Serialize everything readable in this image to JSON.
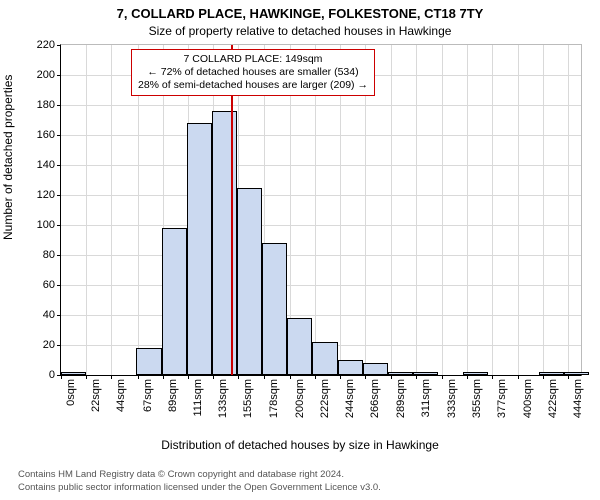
{
  "title": "7, COLLARD PLACE, HAWKINGE, FOLKESTONE, CT18 7TY",
  "subtitle": "Size of property relative to detached houses in Hawkinge",
  "ylabel": "Number of detached properties",
  "xlabel": "Distribution of detached houses by size in Hawkinge",
  "chart": {
    "type": "histogram",
    "bar_fill": "#cbd9f0",
    "bar_stroke": "#000000",
    "grid_color": "#d9d9d9",
    "background": "#ffffff",
    "refline_color": "#cc0000",
    "refline_x": 149,
    "ylim": [
      0,
      220
    ],
    "ytick_step": 20,
    "xtick_labels": [
      "0sqm",
      "22sqm",
      "44sqm",
      "67sqm",
      "89sqm",
      "111sqm",
      "133sqm",
      "155sqm",
      "178sqm",
      "200sqm",
      "222sqm",
      "244sqm",
      "266sqm",
      "289sqm",
      "311sqm",
      "333sqm",
      "355sqm",
      "377sqm",
      "400sqm",
      "422sqm",
      "444sqm"
    ],
    "xtick_values": [
      0,
      22,
      44,
      67,
      89,
      111,
      133,
      155,
      178,
      200,
      222,
      244,
      266,
      289,
      311,
      333,
      355,
      377,
      400,
      422,
      444
    ],
    "xmax": 455,
    "bin_width": 22,
    "values": [
      2,
      0,
      0,
      18,
      98,
      168,
      176,
      125,
      88,
      38,
      22,
      10,
      8,
      2,
      2,
      0,
      2,
      0,
      0,
      2,
      2
    ],
    "title_fontsize": 13,
    "subtitle_fontsize": 12,
    "label_fontsize": 12,
    "tick_fontsize": 11
  },
  "annotation": {
    "line1": "7 COLLARD PLACE: 149sqm",
    "line2": "← 72% of detached houses are smaller (534)",
    "line3": "28% of semi-detached houses are larger (209) →"
  },
  "footer": {
    "line1": "Contains HM Land Registry data © Crown copyright and database right 2024.",
    "line2": "Contains public sector information licensed under the Open Government Licence v3.0."
  }
}
